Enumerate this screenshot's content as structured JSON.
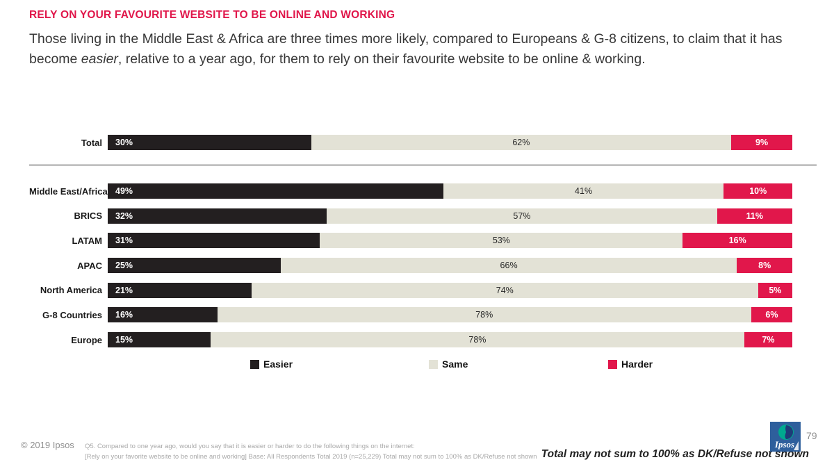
{
  "header": {
    "title": "RELY ON YOUR FAVOURITE WEBSITE TO BE ONLINE AND WORKING",
    "subtitle_part1": "Those living in the Middle East & Africa are three times more likely, compared to Europeans & G-8 citizens, to claim that it has become ",
    "subtitle_italic": "easier",
    "subtitle_part2": ", relative to a year ago, for them to rely on their favourite website to be online & working."
  },
  "chart_data": {
    "type": "bar",
    "stacked": true,
    "orientation": "horizontal",
    "title": "RELY ON YOUR FAVOURITE WEBSITE TO BE ONLINE AND WORKING",
    "categories": [
      "Total",
      "Middle East/Africa",
      "BRICS",
      "LATAM",
      "APAC",
      "North America",
      "G-8 Countries",
      "Europe"
    ],
    "series": [
      {
        "name": "Easier",
        "color": "#231f20",
        "values": [
          30,
          49,
          32,
          31,
          25,
          21,
          16,
          15
        ]
      },
      {
        "name": "Same",
        "color": "#e3e2d6",
        "values": [
          62,
          41,
          57,
          53,
          66,
          74,
          78,
          78
        ]
      },
      {
        "name": "Harder",
        "color": "#e1174b",
        "values": [
          9,
          10,
          11,
          16,
          8,
          5,
          6,
          7
        ]
      }
    ],
    "value_suffix": "%",
    "xlim": [
      0,
      100
    ],
    "legend_position": "bottom",
    "grid": false,
    "layout_note": "Total row separated from regional rows by a horizontal rule; all bars right-aligned to equal length"
  },
  "legend": {
    "items": [
      {
        "label": "Easier",
        "color": "#231f20"
      },
      {
        "label": "Same",
        "color": "#e3e2d6"
      },
      {
        "label": "Harder",
        "color": "#e1174b"
      }
    ]
  },
  "footer": {
    "copyright": "© 2019 Ipsos",
    "footnote_line1": "Q5. Compared to one year ago, would you say that it is easier or harder to do the following things on the internet:",
    "footnote_line2": "[Rely on your favorite website to be online and working] Base: All Respondents Total  2019 (n=25,229) Total may not sum to 100% as DK/Refuse not shown",
    "note_italic": "Total may not sum to 100% as DK/Refuse not shown",
    "page_number": "79",
    "logo_text": "Ipsos"
  },
  "colors": {
    "accent_crimson": "#e1174b",
    "dark": "#231f20",
    "beige": "#e3e2d6"
  }
}
